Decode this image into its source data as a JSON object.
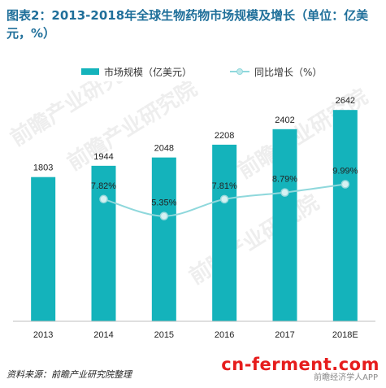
{
  "title": "图表2：2013-2018年全球生物药物市场规模及增长（单位：亿美元，%）",
  "legend": {
    "bar_label": "市场规模（亿美元）",
    "line_label": "同比增长（%）"
  },
  "source": "资料来源：前瞻产业研究院整理",
  "watermark": {
    "main": "cn-ferment.com",
    "sub": "前瞻经济学人APP",
    "background": "前瞻产业研究院"
  },
  "colors": {
    "bar": "#14b3bb",
    "line": "#8fd8dc",
    "title": "#1f6f9a"
  },
  "chart_data": {
    "type": "bar",
    "categories": [
      "2013",
      "2014",
      "2015",
      "2016",
      "2017",
      "2018E"
    ],
    "series": [
      {
        "name": "市场规模（亿美元）",
        "type": "bar",
        "values": [
          1803,
          1944,
          2048,
          2208,
          2402,
          2642
        ]
      },
      {
        "name": "同比增长（%）",
        "type": "line",
        "values": [
          null,
          7.82,
          5.35,
          7.81,
          8.79,
          9.99
        ],
        "labels": [
          "",
          "7.82%",
          "5.35%",
          "7.81%",
          "8.79%",
          "9.99%"
        ]
      }
    ],
    "ylim_bar": [
      0,
      3000
    ],
    "ylim_line": [
      -10,
      25
    ],
    "legend_position": "top",
    "grid": false
  }
}
